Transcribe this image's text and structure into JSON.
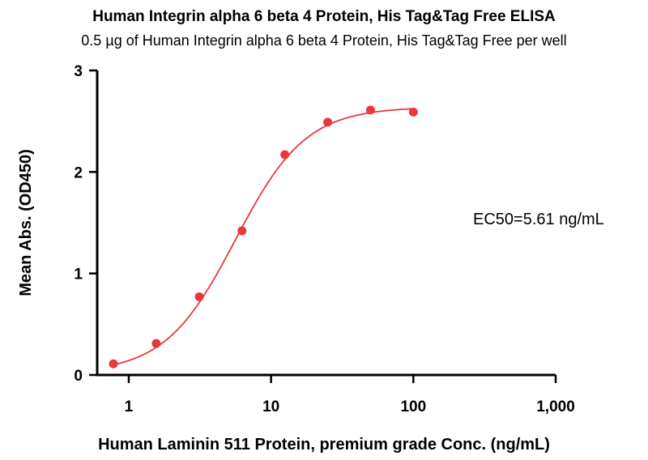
{
  "chart_data": {
    "type": "scatter",
    "title": "Human Integrin alpha 6 beta 4 Protein, His Tag&Tag Free ELISA",
    "subtitle": "0.5 µg of Human Integrin alpha 6 beta 4 Protein, His Tag&Tag Free per well",
    "xlabel": "Human Laminin 511 Protein, premium grade Conc. (ng/mL)",
    "ylabel": "Mean Abs. (OD450)",
    "xscale": "log",
    "xlim": [
      0.6,
      1000
    ],
    "ylim": [
      0,
      3
    ],
    "xticks": [
      1,
      10,
      100,
      1000
    ],
    "xtick_labels": [
      "1",
      "10",
      "100",
      "1,000"
    ],
    "yticks": [
      0,
      1,
      2,
      3
    ],
    "ytick_labels": [
      "0",
      "1",
      "2",
      "3"
    ],
    "grid": false,
    "color": "#e8383d",
    "series": [
      {
        "x": [
          0.78,
          1.56,
          3.13,
          6.25,
          12.5,
          25,
          50,
          100
        ],
        "y": [
          0.11,
          0.31,
          0.77,
          1.42,
          2.17,
          2.49,
          2.61,
          2.59
        ]
      }
    ],
    "fit_curve": {
      "model": "4PL",
      "bottom": 0.02,
      "top": 2.64,
      "ec50": 5.61,
      "hill": 1.75
    },
    "annotation": "EC50=5.61 ng/mL"
  }
}
